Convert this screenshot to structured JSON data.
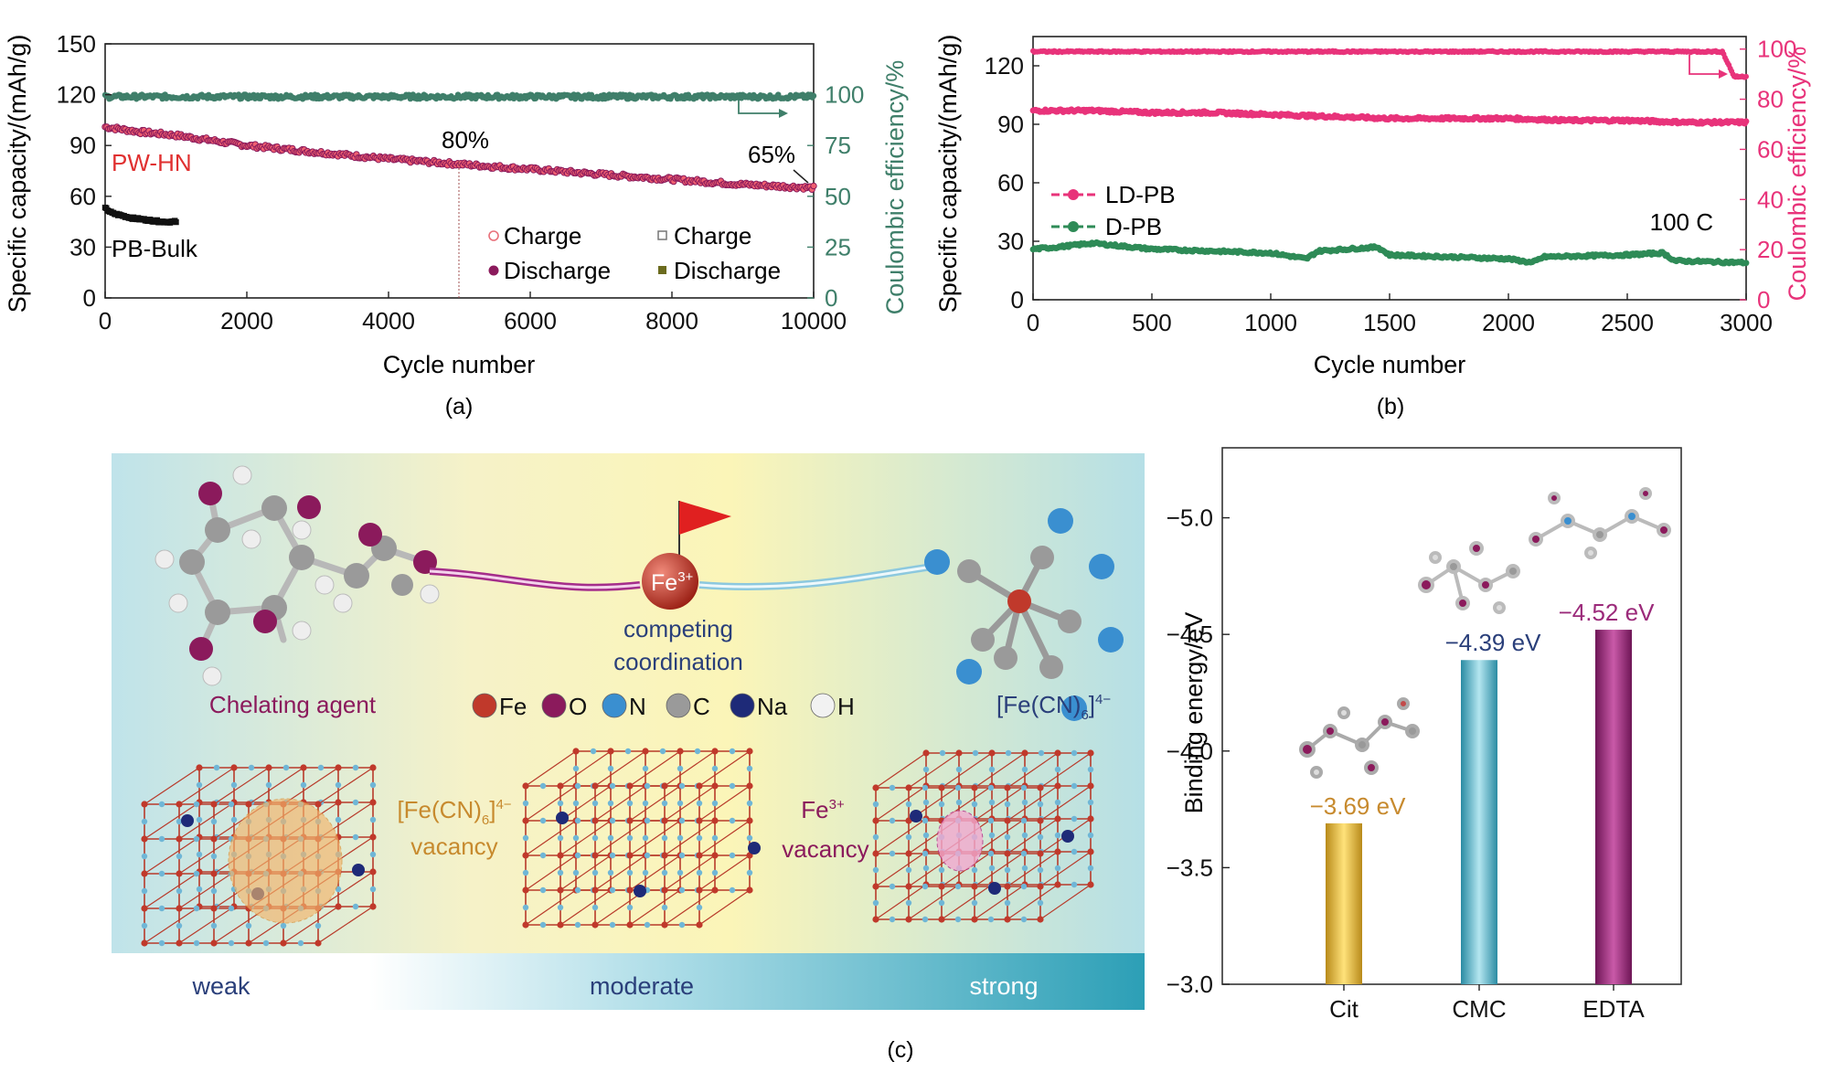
{
  "colors": {
    "pwhn": "#e03030",
    "pwhn_dis": "#8b1a5c",
    "bulk": "#111111",
    "ce_a": "#3f7f6a",
    "ldpb": "#e8337a",
    "dpb": "#2e8b57",
    "ce_b": "#e8337a",
    "cit_bar": "#e8b830",
    "cmc_bar": "#4fb8cf",
    "edta_bar": "#9b2a7a",
    "chelator": "#8b1a5c",
    "vacancy_orange": "#c78a2e",
    "ion_blue": "#2a3f7a"
  },
  "chart_data": [
    {
      "id": "a",
      "type": "line",
      "panel_label": "(a)",
      "xlabel": "Cycle number",
      "ylabel": "Specific capacity/(mAh/g)",
      "y2label": "Coulombic efficiency/%",
      "xlim": [
        0,
        10000
      ],
      "ylim": [
        0,
        150
      ],
      "y2lim": [
        0,
        125
      ],
      "xticks": [
        "0",
        "2000",
        "4000",
        "6000",
        "8000",
        "10000"
      ],
      "yticks": [
        "0",
        "30",
        "60",
        "90",
        "120",
        "150"
      ],
      "y2ticks": [
        "0",
        "25",
        "50",
        "75",
        "100"
      ],
      "series": [
        {
          "name": "PW-HN",
          "axis": "left",
          "x": [
            0,
            500,
            1000,
            2000,
            3000,
            4000,
            5000,
            6000,
            7000,
            8000,
            9000,
            10000
          ],
          "values": [
            101,
            98,
            96,
            90,
            86,
            82,
            79,
            76,
            73,
            70,
            67,
            65
          ]
        },
        {
          "name": "PB-Bulk",
          "axis": "left",
          "x": [
            0,
            100,
            200,
            400,
            600,
            800,
            1000
          ],
          "values": [
            53,
            50,
            49,
            47,
            46,
            45,
            45
          ]
        },
        {
          "name": "Coulombic efficiency",
          "axis": "right",
          "x": [
            0,
            10000
          ],
          "values": [
            99,
            99
          ]
        }
      ],
      "annotations": {
        "p80": "80%",
        "p80_x": 5000,
        "p80_y": 79,
        "p65": "65%",
        "p65_x": 10000,
        "p65_y": 65,
        "pwhn": "PW-HN",
        "bulk": "PB-Bulk"
      },
      "legend": {
        "charge1": "Charge",
        "discharge1": "Discharge",
        "charge2": "Charge",
        "discharge2": "Discharge"
      }
    },
    {
      "id": "b",
      "type": "line",
      "panel_label": "(b)",
      "xlabel": "Cycle number",
      "ylabel": "Specific capacity/(mAh/g)",
      "y2label": "Coulombic efficiency/%",
      "xlim": [
        0,
        3000
      ],
      "ylim": [
        0,
        135
      ],
      "y2lim": [
        0,
        105
      ],
      "xticks": [
        "0",
        "500",
        "1000",
        "1500",
        "2000",
        "2500",
        "3000"
      ],
      "yticks": [
        "0",
        "30",
        "60",
        "90",
        "120"
      ],
      "y2ticks": [
        "0",
        "20",
        "40",
        "60",
        "80",
        "100"
      ],
      "series": [
        {
          "name": "LD-PB",
          "axis": "left",
          "x": [
            0,
            250,
            500,
            750,
            1000,
            1250,
            1500,
            1750,
            2000,
            2250,
            2500,
            2750,
            3000
          ],
          "values": [
            97,
            97,
            96,
            96,
            95,
            94,
            93,
            93,
            93,
            92,
            92,
            91,
            91
          ]
        },
        {
          "name": "D-PB",
          "axis": "left",
          "x": [
            0,
            100,
            250,
            500,
            750,
            1000,
            1150,
            1200,
            1450,
            1500,
            1750,
            2000,
            2100,
            2150,
            2500,
            2650,
            2700,
            3000
          ],
          "values": [
            26,
            27,
            29,
            26,
            25,
            24,
            21,
            25,
            27,
            23,
            22,
            21,
            19,
            22,
            23,
            24,
            20,
            19
          ]
        },
        {
          "name": "Coulombic efficiency",
          "axis": "right",
          "x": [
            0,
            2900,
            2950,
            3000
          ],
          "values": [
            99,
            99,
            89,
            89
          ]
        }
      ],
      "annotations": {
        "rate": "100 C"
      }
    },
    {
      "id": "c",
      "type": "bar",
      "ylabel": "Binding energy/eV",
      "ylim": [
        -3.0,
        -5.3
      ],
      "yticks": [
        "−5.0",
        "−4.5",
        "−4.0",
        "−3.5",
        "−3.0"
      ],
      "categories": [
        "Cit",
        "CMC",
        "EDTA"
      ],
      "values": [
        -3.69,
        -4.39,
        -4.52
      ],
      "value_labels": [
        "−3.69 eV",
        "−4.39 eV",
        "−4.52 eV"
      ]
    }
  ],
  "schematic": {
    "panel_label": "(c)",
    "chelating_agent": "Chelating agent",
    "fe_ion": "Fe",
    "fe_charge": "3+",
    "competing": "competing",
    "coordination": "coordination",
    "ferrocyanide": "[Fe(CN)",
    "ferrocyanide_sub": "6",
    "ferrocyanide_end": "]",
    "ferrocyanide_charge": "4−",
    "elements": [
      "Fe",
      "O",
      "N",
      "C",
      "Na",
      "H"
    ],
    "element_colors": [
      "#c0392b",
      "#8b1a5c",
      "#3a8fd0",
      "#9a9a9a",
      "#1e2a78",
      "#f2f2f2"
    ],
    "vacancy1_a": "[Fe(CN)",
    "vacancy1_sub": "6",
    "vacancy1_b": "]",
    "vacancy1_sup": "4−",
    "vacancy1_line2": "vacancy",
    "vacancy2_a": "Fe",
    "vacancy2_sup": "3+",
    "vacancy2_line2": "vacancy",
    "band_weak": "weak",
    "band_moderate": "moderate",
    "band_strong": "strong"
  }
}
